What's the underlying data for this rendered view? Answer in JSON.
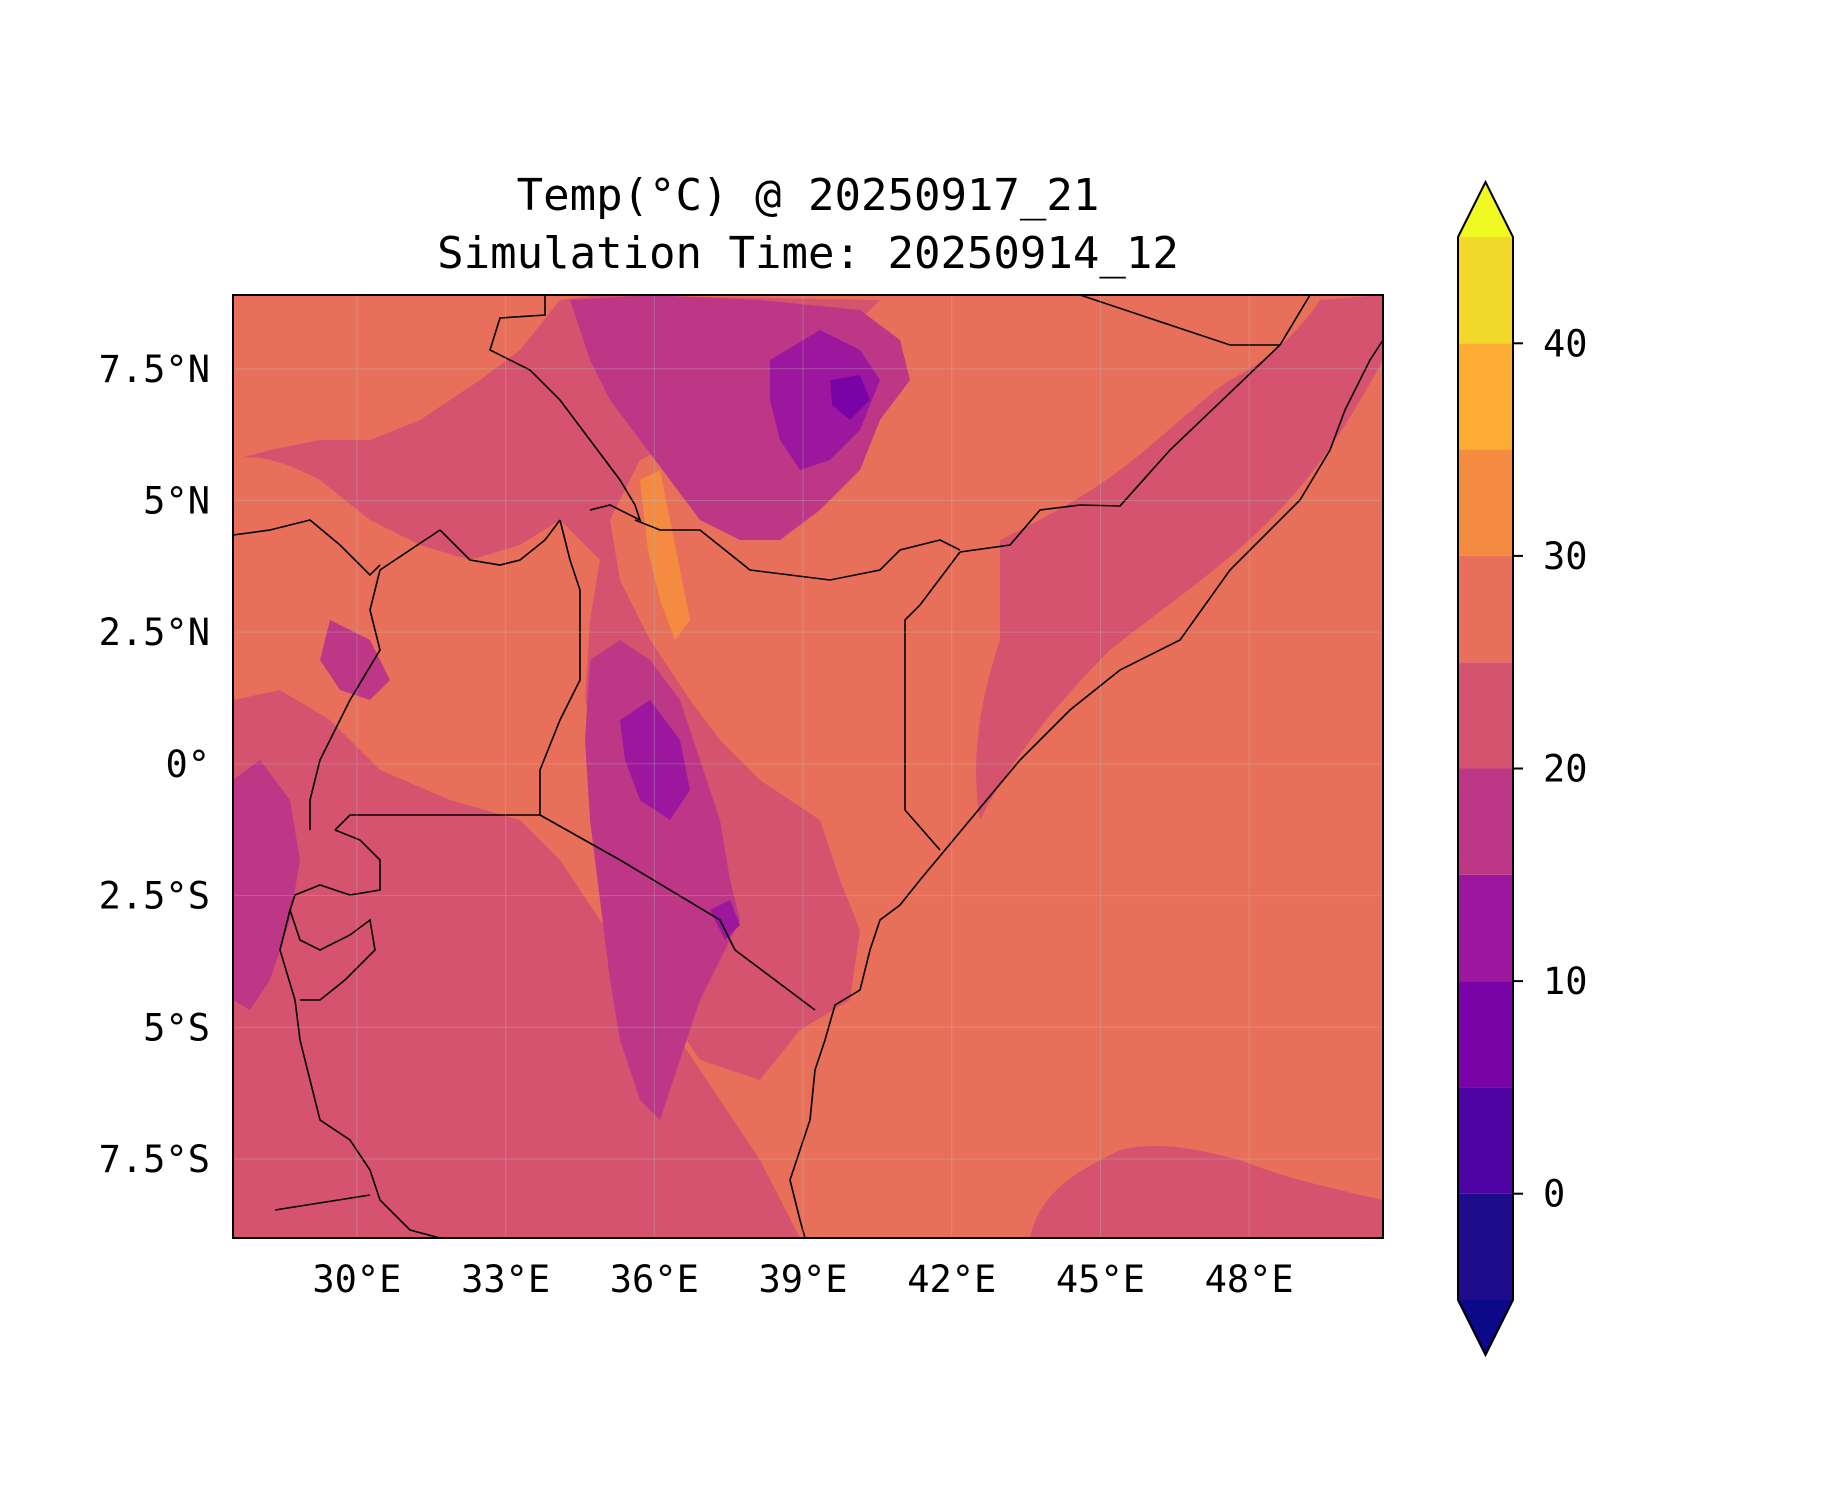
{
  "title": {
    "line1": "Temp(°C) @ 20250917_21",
    "line2": "Simulation Time: 20250914_12"
  },
  "map": {
    "projection": "PlateCarree",
    "lon_range": [
      27.5,
      50.7
    ],
    "lat_range": [
      -9.0,
      8.9
    ],
    "variable": "Temp(°C)",
    "x_ticks": [
      "30°E",
      "33°E",
      "36°E",
      "39°E",
      "42°E",
      "45°E",
      "48°E"
    ],
    "y_ticks": [
      "7.5°N",
      "5°N",
      "2.5°N",
      "0°",
      "2.5°S",
      "5°S",
      "7.5°S"
    ],
    "x_tick_values": [
      30,
      33,
      36,
      39,
      42,
      45,
      48
    ],
    "y_tick_values": [
      7.5,
      5,
      2.5,
      0,
      -2.5,
      -5,
      -7.5
    ],
    "gridlines": true
  },
  "colorbar": {
    "extend": "both",
    "levels": [
      -5,
      0,
      5,
      10,
      15,
      20,
      25,
      30,
      35,
      40,
      45
    ],
    "tick_labels": [
      "0",
      "10",
      "20",
      "30",
      "40"
    ],
    "tick_values": [
      0,
      10,
      20,
      30,
      40
    ],
    "colors": [
      "#1f0c8c",
      "#4d02a3",
      "#7a03a8",
      "#9c179e",
      "#bd3786",
      "#d5536f",
      "#e8705a",
      "#f48b40",
      "#fdad33",
      "#f2d82a",
      "#f0f921"
    ],
    "under_color": "#0d0887",
    "over_color": "#f0f921"
  },
  "colors": {
    "ocean_band": "#e8705a",
    "band_20_25": "#d5536f",
    "band_15_20": "#bd3786",
    "band_10_15": "#9c179e",
    "band_5_10": "#7a03a8",
    "band_30_35": "#f48b40"
  }
}
